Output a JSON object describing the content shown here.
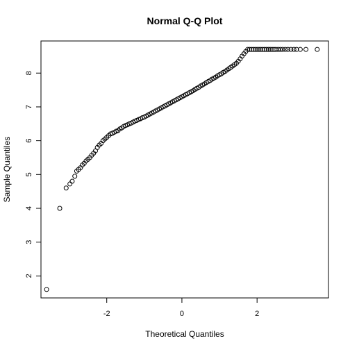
{
  "chart_data": {
    "type": "scatter",
    "title": "Normal Q-Q Plot",
    "xlabel": "Theoretical Quantiles",
    "ylabel": "Sample Quantiles",
    "xlim": [
      -3.75,
      3.9
    ],
    "ylim": [
      1.35,
      8.95
    ],
    "x_ticks": [
      -2,
      0,
      2
    ],
    "y_ticks": [
      2,
      3,
      4,
      5,
      6,
      7,
      8
    ],
    "grid": false,
    "legend": "none",
    "marker": "open-circle",
    "series": [
      {
        "points": [
          [
            -3.6,
            1.6
          ],
          [
            -3.25,
            4.0
          ],
          [
            -3.08,
            4.6
          ],
          [
            -2.98,
            4.72
          ],
          [
            -2.92,
            4.8
          ],
          [
            -2.85,
            4.95
          ],
          [
            -2.8,
            5.1
          ],
          [
            -2.75,
            5.15
          ],
          [
            -2.7,
            5.2
          ],
          [
            -2.65,
            5.28
          ],
          [
            -2.6,
            5.33
          ],
          [
            -2.55,
            5.4
          ],
          [
            -2.5,
            5.45
          ],
          [
            -2.45,
            5.5
          ],
          [
            -2.4,
            5.57
          ],
          [
            -2.35,
            5.63
          ],
          [
            -2.3,
            5.7
          ],
          [
            -2.25,
            5.8
          ],
          [
            -2.2,
            5.87
          ],
          [
            -2.15,
            5.92
          ],
          [
            -2.1,
            6.0
          ],
          [
            -2.05,
            6.05
          ],
          [
            -2.0,
            6.1
          ],
          [
            -1.95,
            6.15
          ],
          [
            -1.9,
            6.2
          ],
          [
            -1.85,
            6.22
          ],
          [
            -1.8,
            6.25
          ],
          [
            -1.75,
            6.28
          ],
          [
            -1.7,
            6.3
          ],
          [
            -1.65,
            6.35
          ],
          [
            -1.6,
            6.38
          ],
          [
            -1.55,
            6.42
          ],
          [
            -1.5,
            6.45
          ],
          [
            -1.45,
            6.47
          ],
          [
            -1.4,
            6.5
          ],
          [
            -1.35,
            6.52
          ],
          [
            -1.3,
            6.55
          ],
          [
            -1.25,
            6.58
          ],
          [
            -1.2,
            6.6
          ],
          [
            -1.15,
            6.63
          ],
          [
            -1.1,
            6.65
          ],
          [
            -1.05,
            6.68
          ],
          [
            -1.0,
            6.7
          ],
          [
            -0.95,
            6.73
          ],
          [
            -0.9,
            6.76
          ],
          [
            -0.85,
            6.79
          ],
          [
            -0.8,
            6.82
          ],
          [
            -0.75,
            6.85
          ],
          [
            -0.7,
            6.88
          ],
          [
            -0.65,
            6.91
          ],
          [
            -0.6,
            6.94
          ],
          [
            -0.55,
            6.97
          ],
          [
            -0.5,
            7.0
          ],
          [
            -0.45,
            7.03
          ],
          [
            -0.4,
            7.06
          ],
          [
            -0.35,
            7.09
          ],
          [
            -0.3,
            7.12
          ],
          [
            -0.25,
            7.15
          ],
          [
            -0.2,
            7.18
          ],
          [
            -0.15,
            7.21
          ],
          [
            -0.1,
            7.24
          ],
          [
            -0.05,
            7.27
          ],
          [
            0.0,
            7.3
          ],
          [
            0.05,
            7.33
          ],
          [
            0.1,
            7.36
          ],
          [
            0.15,
            7.39
          ],
          [
            0.2,
            7.42
          ],
          [
            0.25,
            7.45
          ],
          [
            0.3,
            7.48
          ],
          [
            0.35,
            7.52
          ],
          [
            0.4,
            7.55
          ],
          [
            0.45,
            7.58
          ],
          [
            0.5,
            7.62
          ],
          [
            0.55,
            7.65
          ],
          [
            0.6,
            7.68
          ],
          [
            0.65,
            7.72
          ],
          [
            0.7,
            7.75
          ],
          [
            0.75,
            7.78
          ],
          [
            0.8,
            7.82
          ],
          [
            0.85,
            7.85
          ],
          [
            0.9,
            7.88
          ],
          [
            0.95,
            7.92
          ],
          [
            1.0,
            7.95
          ],
          [
            1.05,
            7.98
          ],
          [
            1.1,
            8.02
          ],
          [
            1.15,
            8.05
          ],
          [
            1.2,
            8.09
          ],
          [
            1.25,
            8.13
          ],
          [
            1.3,
            8.17
          ],
          [
            1.35,
            8.21
          ],
          [
            1.4,
            8.25
          ],
          [
            1.45,
            8.29
          ],
          [
            1.5,
            8.35
          ],
          [
            1.55,
            8.42
          ],
          [
            1.6,
            8.5
          ],
          [
            1.65,
            8.57
          ],
          [
            1.7,
            8.64
          ],
          [
            1.75,
            8.7
          ],
          [
            1.8,
            8.7
          ],
          [
            1.85,
            8.7
          ],
          [
            1.9,
            8.7
          ],
          [
            1.95,
            8.7
          ],
          [
            2.0,
            8.7
          ],
          [
            2.05,
            8.7
          ],
          [
            2.1,
            8.7
          ],
          [
            2.15,
            8.7
          ],
          [
            2.2,
            8.7
          ],
          [
            2.25,
            8.7
          ],
          [
            2.3,
            8.7
          ],
          [
            2.35,
            8.7
          ],
          [
            2.4,
            8.7
          ],
          [
            2.45,
            8.7
          ],
          [
            2.5,
            8.7
          ],
          [
            2.56,
            8.7
          ],
          [
            2.62,
            8.7
          ],
          [
            2.68,
            8.7
          ],
          [
            2.75,
            8.7
          ],
          [
            2.82,
            8.7
          ],
          [
            2.9,
            8.7
          ],
          [
            2.98,
            8.7
          ],
          [
            3.05,
            8.7
          ],
          [
            3.15,
            8.7
          ],
          [
            3.3,
            8.7
          ],
          [
            3.6,
            8.7
          ]
        ]
      }
    ]
  }
}
